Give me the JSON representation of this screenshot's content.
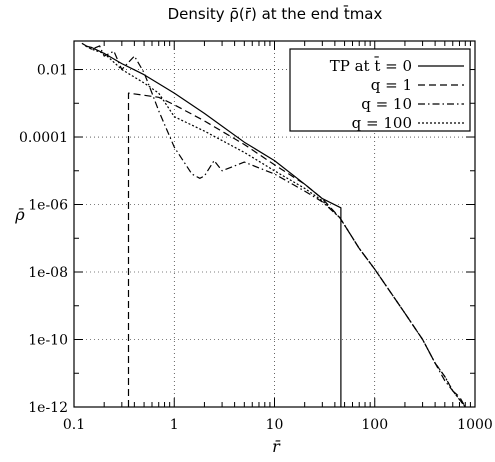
{
  "chart_data": {
    "type": "line",
    "title": "Density ρ̄(r̄) at the end t̄max",
    "xlabel": "r̄",
    "ylabel": "ρ̄",
    "x_scale": "log",
    "y_scale": "log",
    "xlim": [
      0.1,
      1000
    ],
    "ylim": [
      1e-12,
      0.07
    ],
    "x_ticks": [
      0.1,
      1,
      10,
      100,
      1000
    ],
    "x_tick_labels": [
      "0.1",
      "1",
      "10",
      "100",
      "1000"
    ],
    "y_ticks": [
      1e-12,
      1e-10,
      1e-08,
      1e-06,
      0.0001,
      0.01
    ],
    "y_tick_labels": [
      "1e-12",
      "1e-10",
      "1e-08",
      "1e-06",
      "0.0001",
      "0.01"
    ],
    "grid": true,
    "legend_position": "top-right",
    "series": [
      {
        "name": "TP at t̄ = 0",
        "style": "solid",
        "x": [
          0.13,
          0.15,
          0.2,
          0.3,
          0.5,
          1.0,
          2.0,
          5.0,
          10.0,
          20.0,
          30.0,
          46.0,
          46.0
        ],
        "y": [
          0.05,
          0.045,
          0.03,
          0.015,
          0.007,
          0.002,
          0.0005,
          7e-05,
          2e-05,
          4e-06,
          1.5e-06,
          8e-07,
          1e-12
        ]
      },
      {
        "name": "q = 1",
        "style": "dashed",
        "x": [
          0.35,
          0.35,
          0.7,
          1.0,
          2.0,
          5.0,
          10.0,
          20.0,
          30.0,
          45.0,
          70.0,
          100.0,
          200.0,
          300.0,
          400.0,
          500.0,
          600.0,
          700.0,
          800.0
        ],
        "y": [
          1e-12,
          0.002,
          0.0015,
          0.0009,
          0.0003,
          6e-05,
          1.5e-05,
          4e-06,
          1.5e-06,
          4e-07,
          5e-08,
          1.2e-08,
          6e-10,
          1e-10,
          2e-11,
          8e-12,
          3e-12,
          2e-12,
          1e-12
        ]
      },
      {
        "name": "q = 10",
        "style": "dashdot",
        "x": [
          0.12,
          0.15,
          0.18,
          0.2,
          0.25,
          0.3,
          0.4,
          0.5,
          0.6,
          0.7,
          1.0,
          1.5,
          1.8,
          2.0,
          2.5,
          3.0,
          5.0,
          10.0,
          20.0,
          30.0,
          45.0,
          70.0,
          100.0,
          200.0,
          300.0,
          400.0,
          500.0,
          600.0,
          800.0
        ],
        "y": [
          0.06,
          0.04,
          0.05,
          0.025,
          0.035,
          0.01,
          0.025,
          0.008,
          0.002,
          0.0006,
          5e-05,
          8e-06,
          6e-06,
          7e-06,
          2e-05,
          1e-05,
          1.8e-05,
          8e-06,
          2.5e-06,
          1.2e-06,
          4e-07,
          5e-08,
          1.2e-08,
          6e-10,
          1e-10,
          2e-11,
          6e-12,
          3e-12,
          1e-12
        ]
      },
      {
        "name": "q = 100",
        "style": "dotted",
        "x": [
          0.13,
          0.15,
          0.2,
          0.3,
          0.5,
          0.7,
          1.0,
          2.0,
          5.0,
          10.0,
          20.0,
          30.0,
          45.0,
          70.0,
          100.0,
          200.0,
          300.0,
          400.0,
          500.0,
          600.0,
          800.0
        ],
        "y": [
          0.05,
          0.04,
          0.03,
          0.01,
          0.004,
          0.002,
          0.0004,
          0.00015,
          3.5e-05,
          1e-05,
          3e-06,
          1.3e-06,
          4e-07,
          5e-08,
          1.2e-08,
          6e-10,
          1e-10,
          2e-11,
          8e-12,
          3e-12,
          1e-12
        ]
      }
    ]
  }
}
